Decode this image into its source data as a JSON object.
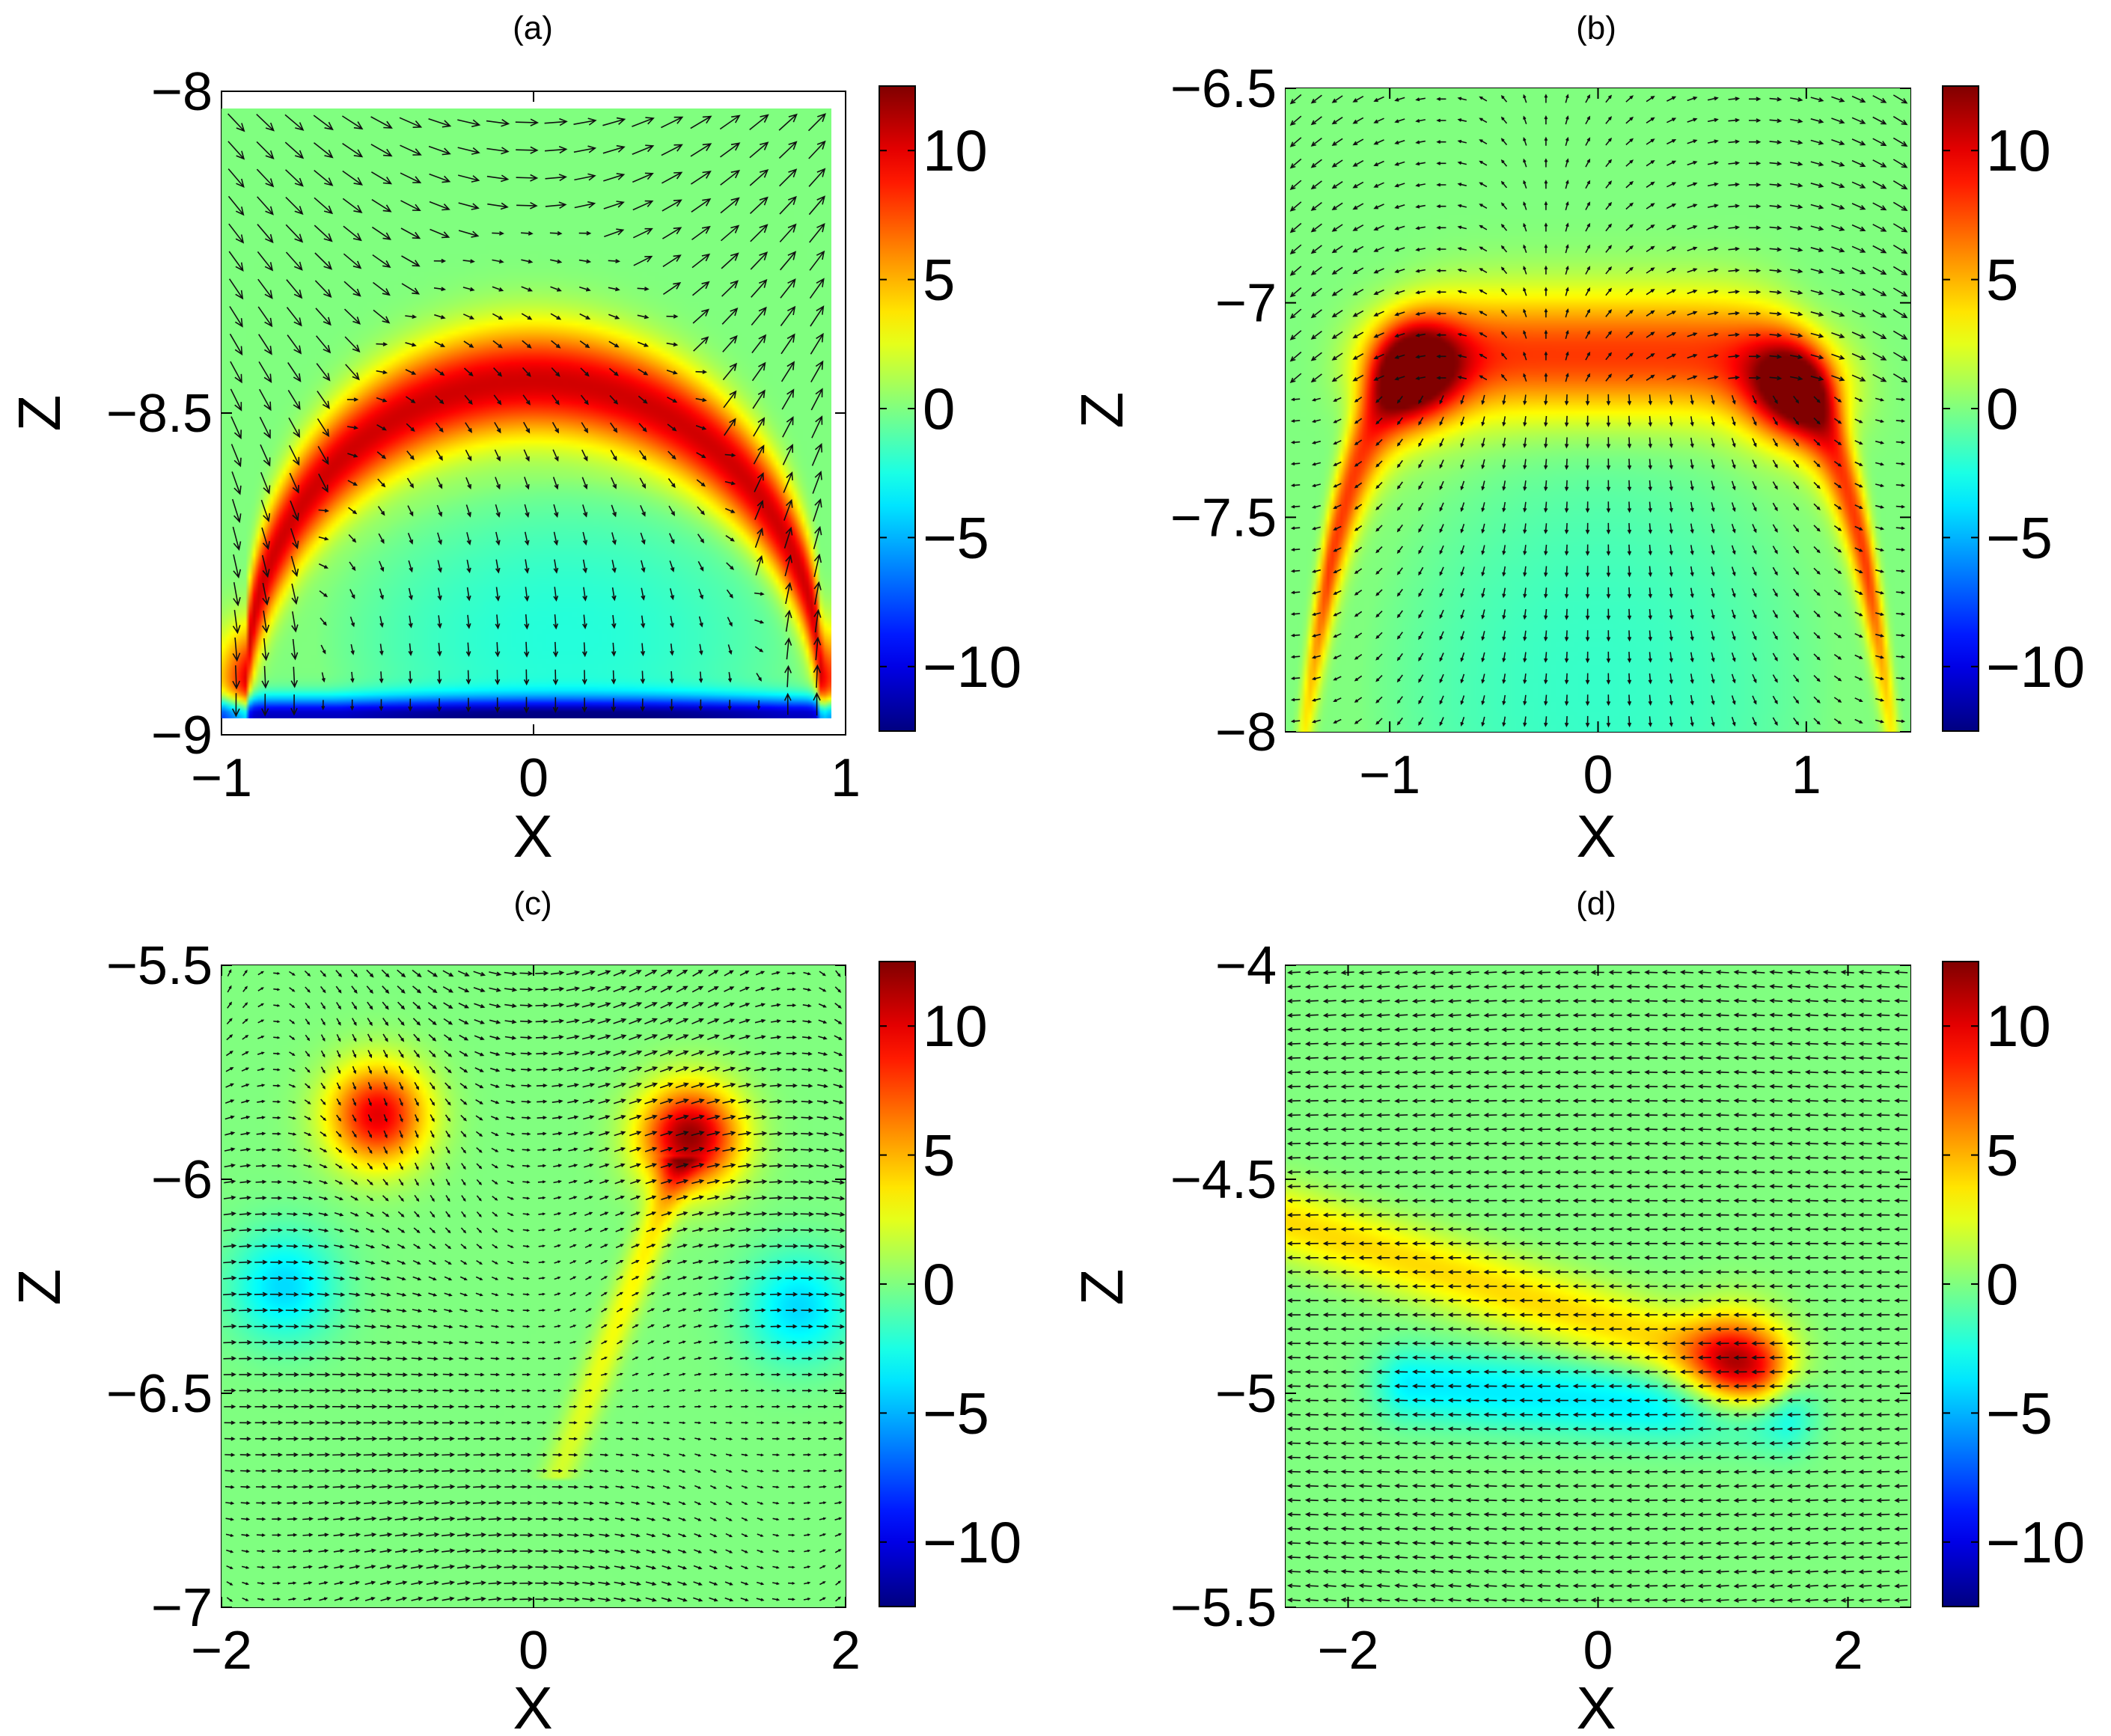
{
  "figure": {
    "description_type": "four-panel colormap with vector field overlay"
  },
  "colorbar": {
    "range": [
      -12.5,
      12.5
    ],
    "ticks": [
      -10,
      -5,
      0,
      5,
      10
    ],
    "tick_labels": [
      "−10",
      "−5",
      "0",
      "5",
      "10"
    ],
    "colormap": "jet"
  },
  "chart_data": [
    {
      "type": "heatmap",
      "panel": "a",
      "title": "(a)",
      "xlabel": "X",
      "ylabel": "Z",
      "xlim": [
        -1,
        1
      ],
      "ylim": [
        -9,
        -8
      ],
      "xticks": [
        -1,
        0,
        1
      ],
      "xtick_labels": [
        "−1",
        "0",
        "1"
      ],
      "yticks": [
        -9,
        -8.5,
        -8
      ],
      "ytick_labels": [
        "−9",
        "−8.5",
        "−8"
      ],
      "features": [
        {
          "kind": "arc",
          "center_x": 0,
          "base_z": -8.92,
          "peak_z": -8.45,
          "half_width": 0.92,
          "thickness": 0.06,
          "value": 10.5
        },
        {
          "kind": "dome",
          "center_x": 0.1,
          "center_z": -8.85,
          "rx": 0.8,
          "rz": 0.25,
          "value": -2.5
        },
        {
          "kind": "band",
          "z": -8.97,
          "thickness": 0.02,
          "value": -11
        }
      ],
      "vector_field": {
        "pattern": "circulation",
        "grid": [
          21,
          22
        ]
      }
    },
    {
      "type": "heatmap",
      "panel": "b",
      "title": "(b)",
      "xlabel": "X",
      "ylabel": "Z",
      "xlim": [
        -1.5,
        1.5
      ],
      "ylim": [
        -8,
        -6.5
      ],
      "xticks": [
        -1,
        0,
        1
      ],
      "xtick_labels": [
        "−1",
        "0",
        "1"
      ],
      "yticks": [
        -8,
        -7.5,
        -7,
        -6.5
      ],
      "ytick_labels": [
        "−8",
        "−7.5",
        "−7",
        "−6.5"
      ],
      "features": [
        {
          "kind": "flat-arc",
          "center_x": 0,
          "top_z": -7.12,
          "half_width": 1.3,
          "thickness": 0.1,
          "value": 8
        },
        {
          "kind": "spot",
          "x": -0.9,
          "z": -7.15,
          "value": 11
        },
        {
          "kind": "spot",
          "x": 0.95,
          "z": -7.2,
          "value": 9.5
        },
        {
          "kind": "dome",
          "center_x": 0,
          "center_z": -7.9,
          "rx": 1.15,
          "rz": 0.65,
          "value": -2
        }
      ],
      "vector_field": {
        "pattern": "bubble",
        "grid": [
          30,
          30
        ]
      }
    },
    {
      "type": "heatmap",
      "panel": "c",
      "title": "(c)",
      "xlabel": "X",
      "ylabel": "Z",
      "xlim": [
        -2,
        2
      ],
      "ylim": [
        -7,
        -5.5
      ],
      "xticks": [
        -2,
        0,
        2
      ],
      "xtick_labels": [
        "−2",
        "0",
        "2"
      ],
      "yticks": [
        -7,
        -6.5,
        -6,
        -5.5
      ],
      "ytick_labels": [
        "−7",
        "−6.5",
        "−6",
        "−5.5"
      ],
      "features": [
        {
          "kind": "spot",
          "x": -1.0,
          "z": -5.85,
          "value": 10
        },
        {
          "kind": "spot",
          "x": 1.0,
          "z": -5.9,
          "value": 12
        },
        {
          "kind": "stem",
          "x_top": 0.95,
          "x_bottom": 0.15,
          "z_top": -5.95,
          "z_bottom": -6.7,
          "value": 4
        },
        {
          "kind": "lobe",
          "x": -1.6,
          "z": -6.25,
          "value": -4
        },
        {
          "kind": "lobe",
          "x": 1.7,
          "z": -6.3,
          "value": -4
        }
      ],
      "vector_field": {
        "pattern": "double-plume",
        "grid": [
          40,
          40
        ]
      }
    },
    {
      "type": "heatmap",
      "panel": "d",
      "title": "(d)",
      "xlabel": "X",
      "ylabel": "Z",
      "xlim": [
        -2.5,
        2.5
      ],
      "ylim": [
        -5.5,
        -4
      ],
      "xticks": [
        -2,
        0,
        2
      ],
      "xtick_labels": [
        "−2",
        "0",
        "2"
      ],
      "yticks": [
        -5.5,
        -5,
        -4.5,
        -4
      ],
      "ytick_labels": [
        "−5.5",
        "−5",
        "−4.5",
        "−4"
      ],
      "features": [
        {
          "kind": "diagonal-band",
          "x0": -2.5,
          "z0": -4.6,
          "x1": 1.3,
          "z1": -4.95,
          "value": 4
        },
        {
          "kind": "spot",
          "x": 1.1,
          "z": -4.93,
          "value": 8
        },
        {
          "kind": "diagonal-band",
          "x0": -1.5,
          "z0": -4.98,
          "x1": 1.5,
          "z1": -5.05,
          "value": -3.5
        }
      ],
      "vector_field": {
        "pattern": "leftward-shear",
        "grid": [
          35,
          45
        ]
      }
    }
  ]
}
